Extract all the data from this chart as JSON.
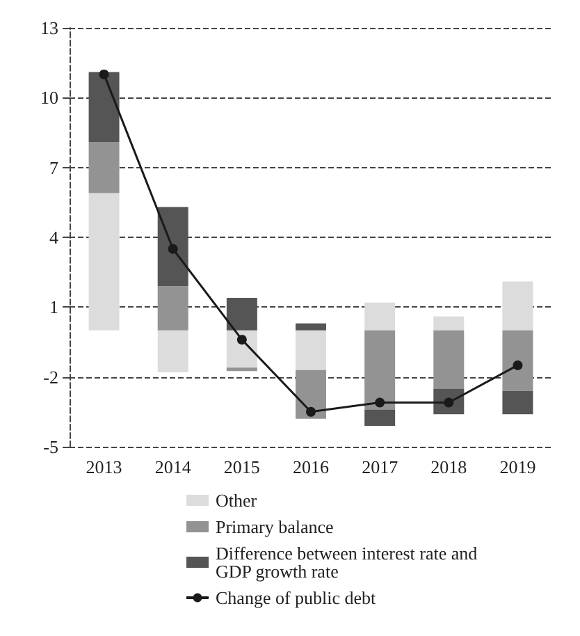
{
  "chart_data": {
    "type": "bar",
    "stacked": true,
    "categories": [
      "2013",
      "2014",
      "2015",
      "2016",
      "2017",
      "2018",
      "2019"
    ],
    "series": [
      {
        "name": "Other",
        "color": "#dcdcdc",
        "values": [
          5.9,
          -1.8,
          -1.6,
          -1.7,
          1.2,
          0.6,
          2.1
        ]
      },
      {
        "name": "Primary balance",
        "color": "#939393",
        "values": [
          2.2,
          1.9,
          -0.15,
          -2.1,
          -3.4,
          -2.5,
          -2.6
        ]
      },
      {
        "name": "Difference between interest rate and GDP growth rate",
        "color": "#555555",
        "values": [
          3.0,
          3.4,
          1.4,
          0.3,
          -0.7,
          -1.1,
          -1.0
        ]
      },
      {
        "name": "Change of public debt",
        "type": "line",
        "color": "#1a1a1a",
        "marker": "circle",
        "line_style": "solid",
        "values": [
          11.0,
          3.5,
          -0.4,
          -3.5,
          -3.1,
          -3.1,
          -1.5
        ]
      }
    ],
    "ylim": [
      -5,
      13
    ],
    "yticks": [
      -5,
      -2,
      1,
      4,
      7,
      10,
      13
    ],
    "grid": "y",
    "legend": "bottom"
  }
}
